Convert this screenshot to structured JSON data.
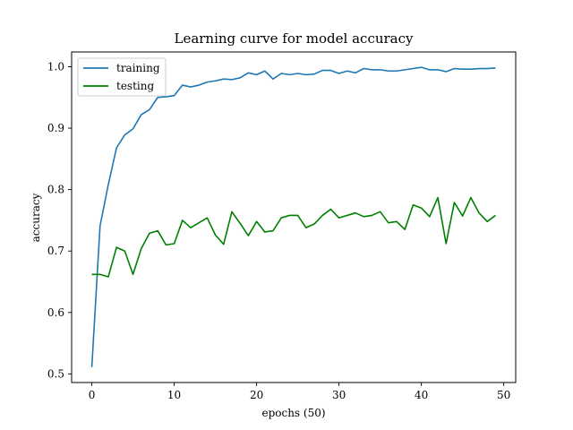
{
  "chart_data": {
    "type": "line",
    "title": "Learning curve for model accuracy",
    "xlabel": "epochs (50)",
    "ylabel": "accuracy",
    "xlim": [
      -2.45,
      51.45
    ],
    "ylim": [
      0.486,
      1.024
    ],
    "xticks": [
      0,
      10,
      20,
      30,
      40,
      50
    ],
    "yticks": [
      0.5,
      0.6,
      0.7,
      0.8,
      0.9,
      1.0
    ],
    "ytick_labels": [
      "0.5",
      "0.6",
      "0.7",
      "0.8",
      "0.9",
      "1.0"
    ],
    "grid": false,
    "legend_position": "top-left",
    "x": [
      0,
      1,
      2,
      3,
      4,
      5,
      6,
      7,
      8,
      9,
      10,
      11,
      12,
      13,
      14,
      15,
      16,
      17,
      18,
      19,
      20,
      21,
      22,
      23,
      24,
      25,
      26,
      27,
      28,
      29,
      30,
      31,
      32,
      33,
      34,
      35,
      36,
      37,
      38,
      39,
      40,
      41,
      42,
      43,
      44,
      45,
      46,
      47,
      48,
      49
    ],
    "series": [
      {
        "name": "training",
        "color": "#1f77b4",
        "values": [
          0.511,
          0.741,
          0.808,
          0.868,
          0.889,
          0.899,
          0.922,
          0.93,
          0.95,
          0.951,
          0.953,
          0.97,
          0.967,
          0.97,
          0.975,
          0.977,
          0.98,
          0.979,
          0.982,
          0.99,
          0.987,
          0.993,
          0.98,
          0.989,
          0.987,
          0.989,
          0.987,
          0.988,
          0.994,
          0.994,
          0.989,
          0.993,
          0.99,
          0.997,
          0.995,
          0.995,
          0.993,
          0.993,
          0.995,
          0.997,
          0.999,
          0.995,
          0.995,
          0.992,
          0.997,
          0.996,
          0.996,
          0.997,
          0.997,
          0.998
        ]
      },
      {
        "name": "testing",
        "color": "#008000",
        "values": [
          0.662,
          0.662,
          0.658,
          0.706,
          0.7,
          0.662,
          0.704,
          0.729,
          0.733,
          0.71,
          0.712,
          0.75,
          0.738,
          0.746,
          0.754,
          0.726,
          0.711,
          0.764,
          0.745,
          0.725,
          0.748,
          0.731,
          0.733,
          0.754,
          0.758,
          0.758,
          0.738,
          0.744,
          0.758,
          0.768,
          0.754,
          0.758,
          0.762,
          0.756,
          0.758,
          0.764,
          0.746,
          0.748,
          0.735,
          0.775,
          0.77,
          0.756,
          0.787,
          0.712,
          0.779,
          0.757,
          0.787,
          0.762,
          0.748,
          0.758
        ]
      }
    ]
  }
}
